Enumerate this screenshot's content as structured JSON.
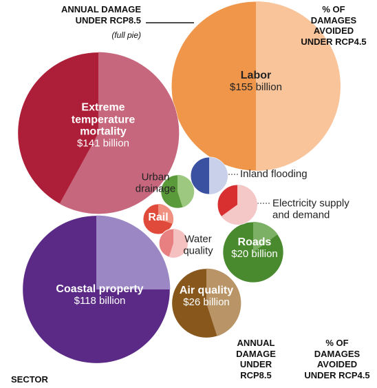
{
  "chart_data": {
    "type": "bubble_pie",
    "legend_damage": [
      "ANNUAL DAMAGE",
      "UNDER RCP8.5"
    ],
    "legend_damage_note": "(full pie)",
    "legend_avoided": [
      "% OF",
      "DAMAGES",
      "AVOIDED",
      "UNDER RCP4.5"
    ],
    "footer_sector": "SECTOR",
    "footer_damage": [
      "ANNUAL",
      "DAMAGE",
      "UNDER",
      "RCP8.5"
    ],
    "footer_avoided": [
      "% OF",
      "DAMAGES",
      "AVOIDED",
      "UNDER RCP4.5"
    ],
    "categories": [
      "Labor",
      "Extreme temperature mortality",
      "Coastal property",
      "Air quality",
      "Roads",
      "Urban drainage",
      "Rail",
      "Water quality",
      "Inland flooding",
      "Electricity supply and demand"
    ],
    "values": [
      155,
      141,
      118,
      26,
      20,
      6,
      5,
      4.5,
      7.5,
      8.6
    ],
    "value_labels": [
      "$155 billion",
      "$141 billion",
      "$118 billion",
      "$26 billion",
      "$20 billion",
      null,
      null,
      null,
      null,
      null
    ],
    "avoided": [
      50,
      58,
      25,
      45,
      15,
      45,
      30,
      55,
      50,
      65
    ],
    "colors": [
      "#f0964a",
      "#ad1f38",
      "#5a2a86",
      "#87571c",
      "#4a8a2e",
      "#5a9a3a",
      "#e04a3a",
      "#e87f80",
      "#3a50a0",
      "#d83030"
    ],
    "avoided_colors": [
      "#f9c49a",
      "#c7677d",
      "#9b87c4",
      "#b99466",
      "#7cb064",
      "#9cc880",
      "#f09080",
      "#f5c0c0",
      "#c8d0ea",
      "#f5c8c8"
    ]
  }
}
